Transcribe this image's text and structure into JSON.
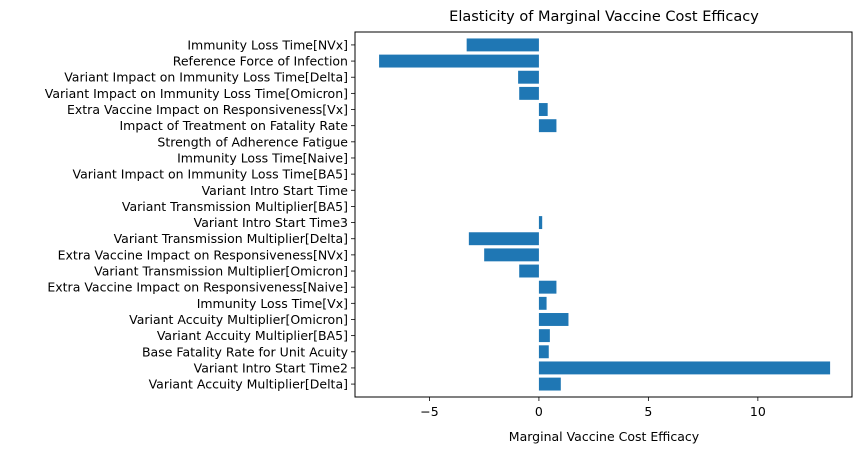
{
  "chart_data": {
    "type": "bar",
    "orientation": "horizontal",
    "title": "Elasticity of Marginal Vaccine Cost Efficacy",
    "xlabel": "Marginal Vaccine Cost Efficacy",
    "ylabel": "",
    "xlim": [
      -8.4,
      14.3
    ],
    "xticks": [
      -5,
      0,
      5,
      10
    ],
    "xtick_labels": [
      "−5",
      "0",
      "5",
      "10"
    ],
    "bar_color": "#1f77b4",
    "grid": false,
    "categories": [
      "Immunity Loss Time[NVx]",
      "Reference Force of Infection",
      "Variant Impact on Immunity Loss Time[Delta]",
      "Variant Impact on Immunity Loss Time[Omicron]",
      "Extra Vaccine Impact on Responsiveness[Vx]",
      "Impact of Treatment on Fatality Rate",
      "Strength of Adherence Fatigue",
      "Immunity Loss Time[Naive]",
      "Variant Impact on Immunity Loss Time[BA5]",
      "Variant Intro Start Time",
      "Variant Transmission Multiplier[BA5]",
      "Variant Intro Start Time3",
      "Variant Transmission Multiplier[Delta]",
      "Extra Vaccine Impact on Responsiveness[NVx]",
      "Variant Transmission Multiplier[Omicron]",
      "Extra Vaccine Impact on Responsiveness[Naive]",
      "Immunity Loss Time[Vx]",
      "Variant Accuity Multiplier[Omicron]",
      "Variant Accuity Multiplier[BA5]",
      "Base Fatality Rate for Unit Acuity",
      "Variant Intro Start Time2",
      "Variant Accuity Multiplier[Delta]"
    ],
    "values": [
      -3.3,
      -7.3,
      -0.95,
      -0.9,
      0.4,
      0.8,
      0.0,
      0.0,
      0.0,
      0.0,
      0.0,
      0.15,
      -3.2,
      -2.5,
      -0.9,
      0.8,
      0.35,
      1.35,
      0.5,
      0.45,
      13.3,
      1.0
    ]
  }
}
